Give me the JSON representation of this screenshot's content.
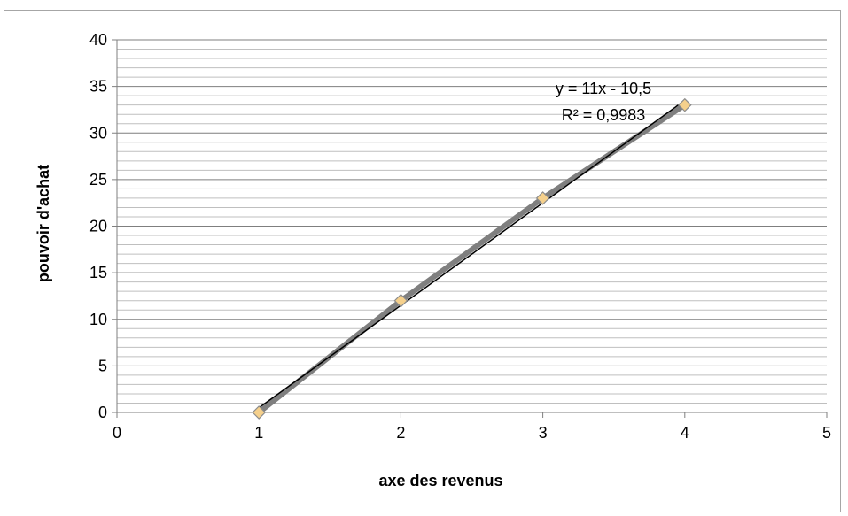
{
  "chart_data": {
    "type": "scatter",
    "xlabel": "axe des revenus",
    "ylabel": "pouvoir d'achat",
    "xlim": [
      0,
      5
    ],
    "ylim": [
      0,
      40
    ],
    "xticks": [
      0,
      1,
      2,
      3,
      4,
      5
    ],
    "yticks": [
      0,
      5,
      10,
      15,
      20,
      25,
      30,
      35,
      40
    ],
    "y_minor_step": 1,
    "grid": true,
    "legend": "none",
    "series": [
      {
        "x": [
          1,
          2,
          3,
          4
        ],
        "y": [
          0,
          12,
          23,
          33
        ],
        "marker": "diamond",
        "marker_color": "#f5d08c",
        "line_color": "#7f7f7f"
      }
    ],
    "trendline": {
      "type": "linear",
      "slope": 11,
      "intercept": -10.5,
      "x_range": [
        1,
        4
      ],
      "equation": "y = 11x - 10,5",
      "r_squared": "R² = 0,9983",
      "color": "#000000"
    }
  }
}
